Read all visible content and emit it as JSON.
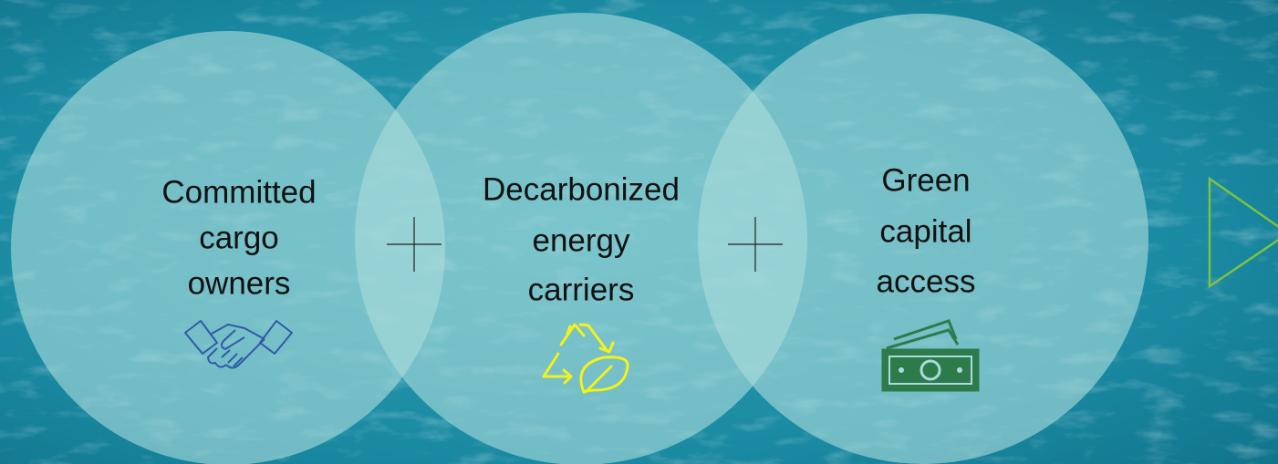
{
  "nodes": [
    {
      "lines": [
        "Committed",
        "cargo",
        "owners"
      ]
    },
    {
      "lines": [
        "Decarbonized",
        "energy",
        "carriers"
      ]
    },
    {
      "lines": [
        "Green",
        "capital",
        "access"
      ]
    }
  ]
}
